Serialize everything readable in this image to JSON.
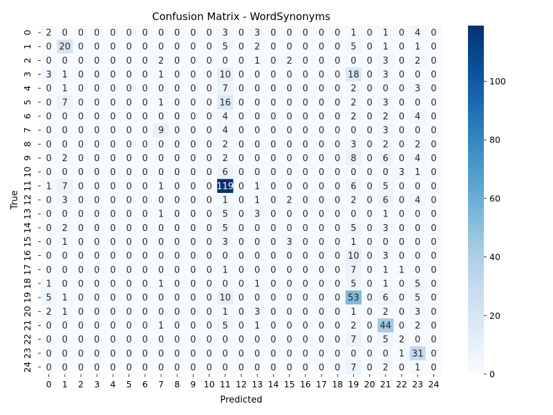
{
  "chart_data": {
    "type": "heatmap",
    "title": "Confusion Matrix - WordSynonyms",
    "xlabel": "Predicted",
    "ylabel": "True",
    "x_ticks": [
      "0",
      "1",
      "2",
      "3",
      "4",
      "5",
      "6",
      "7",
      "8",
      "9",
      "10",
      "11",
      "12",
      "13",
      "14",
      "15",
      "16",
      "17",
      "18",
      "19",
      "20",
      "21",
      "22",
      "23",
      "24"
    ],
    "y_ticks": [
      "0",
      "1",
      "2",
      "3",
      "4",
      "5",
      "6",
      "7",
      "8",
      "9",
      "10",
      "11",
      "12",
      "13",
      "14",
      "15",
      "16",
      "17",
      "18",
      "19",
      "20",
      "21",
      "22",
      "23",
      "24"
    ],
    "matrix": [
      [
        2,
        0,
        0,
        0,
        0,
        0,
        0,
        0,
        0,
        0,
        0,
        3,
        0,
        3,
        0,
        0,
        0,
        0,
        0,
        1,
        0,
        1,
        0,
        4,
        0
      ],
      [
        0,
        20,
        0,
        0,
        0,
        0,
        0,
        0,
        0,
        0,
        0,
        5,
        0,
        2,
        0,
        0,
        0,
        0,
        0,
        5,
        0,
        1,
        0,
        1,
        0
      ],
      [
        0,
        0,
        0,
        0,
        0,
        0,
        0,
        2,
        0,
        0,
        0,
        0,
        0,
        1,
        0,
        2,
        0,
        0,
        0,
        0,
        0,
        3,
        0,
        2,
        0
      ],
      [
        3,
        1,
        0,
        0,
        0,
        0,
        0,
        1,
        0,
        0,
        0,
        10,
        0,
        0,
        0,
        0,
        0,
        0,
        0,
        18,
        0,
        3,
        0,
        0,
        0
      ],
      [
        0,
        1,
        0,
        0,
        0,
        0,
        0,
        0,
        0,
        0,
        0,
        7,
        0,
        0,
        0,
        0,
        0,
        0,
        0,
        2,
        0,
        0,
        0,
        3,
        0
      ],
      [
        0,
        7,
        0,
        0,
        0,
        0,
        0,
        1,
        0,
        0,
        0,
        16,
        0,
        0,
        0,
        0,
        0,
        0,
        0,
        2,
        0,
        3,
        0,
        0,
        0
      ],
      [
        0,
        0,
        0,
        0,
        0,
        0,
        0,
        0,
        0,
        0,
        0,
        4,
        0,
        0,
        0,
        0,
        0,
        0,
        0,
        2,
        0,
        2,
        0,
        4,
        0
      ],
      [
        0,
        0,
        0,
        0,
        0,
        0,
        0,
        9,
        0,
        0,
        0,
        4,
        0,
        0,
        0,
        0,
        0,
        0,
        0,
        0,
        0,
        3,
        0,
        0,
        0
      ],
      [
        0,
        0,
        0,
        0,
        0,
        0,
        0,
        0,
        0,
        0,
        0,
        2,
        0,
        0,
        0,
        0,
        0,
        0,
        0,
        3,
        0,
        2,
        0,
        2,
        0
      ],
      [
        0,
        2,
        0,
        0,
        0,
        0,
        0,
        0,
        0,
        0,
        0,
        2,
        0,
        0,
        0,
        0,
        0,
        0,
        0,
        8,
        0,
        6,
        0,
        4,
        0
      ],
      [
        0,
        0,
        0,
        0,
        0,
        0,
        0,
        0,
        0,
        0,
        0,
        6,
        0,
        0,
        0,
        0,
        0,
        0,
        0,
        0,
        0,
        0,
        3,
        1,
        0
      ],
      [
        1,
        7,
        0,
        0,
        0,
        0,
        0,
        1,
        0,
        0,
        0,
        119,
        0,
        1,
        0,
        0,
        0,
        0,
        0,
        6,
        0,
        5,
        0,
        0,
        0
      ],
      [
        0,
        3,
        0,
        0,
        0,
        0,
        0,
        0,
        0,
        0,
        0,
        1,
        0,
        1,
        0,
        2,
        0,
        0,
        0,
        2,
        0,
        6,
        0,
        4,
        0
      ],
      [
        0,
        0,
        0,
        0,
        0,
        0,
        0,
        1,
        0,
        0,
        0,
        5,
        0,
        3,
        0,
        0,
        0,
        0,
        0,
        0,
        0,
        1,
        0,
        0,
        0
      ],
      [
        0,
        2,
        0,
        0,
        0,
        0,
        0,
        0,
        0,
        0,
        0,
        5,
        0,
        0,
        0,
        0,
        0,
        0,
        0,
        5,
        0,
        3,
        0,
        0,
        0
      ],
      [
        0,
        1,
        0,
        0,
        0,
        0,
        0,
        0,
        0,
        0,
        0,
        3,
        0,
        0,
        0,
        3,
        0,
        0,
        0,
        1,
        0,
        0,
        0,
        0,
        0
      ],
      [
        0,
        0,
        0,
        0,
        0,
        0,
        0,
        0,
        0,
        0,
        0,
        0,
        0,
        0,
        0,
        0,
        0,
        0,
        0,
        10,
        0,
        3,
        0,
        0,
        0
      ],
      [
        0,
        0,
        0,
        0,
        0,
        0,
        0,
        0,
        0,
        0,
        0,
        1,
        0,
        0,
        0,
        0,
        0,
        0,
        0,
        7,
        0,
        1,
        1,
        0,
        0
      ],
      [
        1,
        0,
        0,
        0,
        0,
        0,
        0,
        1,
        0,
        0,
        0,
        0,
        0,
        1,
        0,
        0,
        0,
        0,
        0,
        5,
        0,
        1,
        0,
        5,
        0
      ],
      [
        5,
        1,
        0,
        0,
        0,
        0,
        0,
        0,
        0,
        0,
        0,
        10,
        0,
        0,
        0,
        0,
        0,
        0,
        0,
        53,
        0,
        6,
        0,
        5,
        0
      ],
      [
        2,
        1,
        0,
        0,
        0,
        0,
        0,
        0,
        0,
        0,
        0,
        1,
        0,
        3,
        0,
        0,
        0,
        0,
        0,
        1,
        0,
        2,
        0,
        3,
        0
      ],
      [
        0,
        0,
        0,
        0,
        0,
        0,
        0,
        1,
        0,
        0,
        0,
        5,
        0,
        1,
        0,
        0,
        0,
        0,
        0,
        2,
        0,
        44,
        0,
        2,
        0
      ],
      [
        0,
        0,
        0,
        0,
        0,
        0,
        0,
        0,
        0,
        0,
        0,
        0,
        0,
        0,
        0,
        0,
        0,
        0,
        0,
        7,
        0,
        5,
        2,
        0,
        0
      ],
      [
        0,
        0,
        0,
        0,
        0,
        0,
        0,
        0,
        0,
        0,
        0,
        0,
        0,
        0,
        0,
        0,
        0,
        0,
        0,
        0,
        0,
        0,
        1,
        31,
        0
      ],
      [
        0,
        0,
        0,
        0,
        0,
        0,
        0,
        0,
        0,
        0,
        0,
        0,
        0,
        0,
        0,
        0,
        0,
        0,
        0,
        7,
        0,
        2,
        0,
        1,
        0
      ]
    ],
    "vmin": 0,
    "vmax": 119,
    "colormap": "Blues",
    "colorbar_ticks": [
      0,
      20,
      40,
      60,
      80,
      100
    ],
    "grid": false,
    "text_color_light": "#ffffff",
    "text_color_dark": "#262626"
  }
}
